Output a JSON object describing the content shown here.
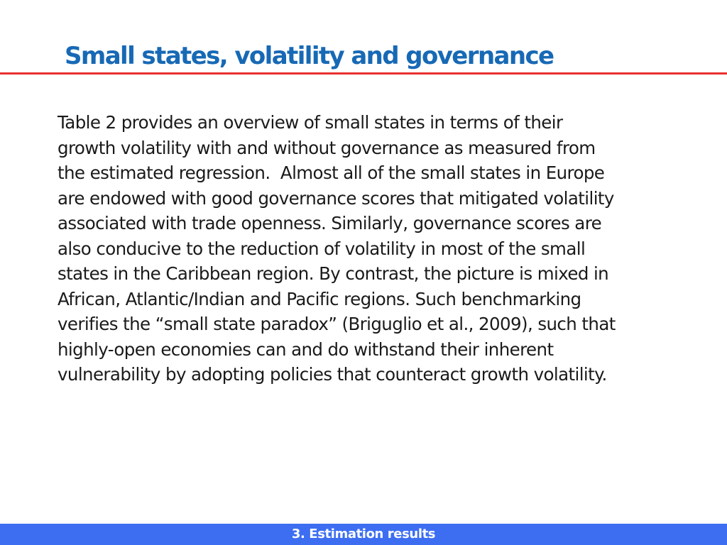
{
  "slide": {
    "title": "Small states, volatility and governance",
    "body_lines": [
      "Table 2 provides an overview of small states in terms of their",
      "growth volatility with and without governance as measured from",
      "the estimated regression.  Almost all of the small states in Europe",
      "are endowed with good governance scores that mitigated volatility",
      "associated with trade openness. Similarly, governance scores are",
      "also conducive to the reduction of volatility in most of the small",
      "states in the Caribbean region. By contrast, the picture is mixed in",
      "African, Atlantic/Indian and Pacific regions. Such benchmarking",
      "verifies the “small state paradox” (Briguglio et al., 2009), such that",
      "highly-open economies can and do withstand their inherent",
      "vulnerability by adopting policies that counteract growth volatility."
    ],
    "footer": "3. Estimation results"
  },
  "colors": {
    "title": "#1769b5",
    "rule": "#e8302f",
    "footer_bar": "#3d6ef2",
    "footer_text": "#ffffff",
    "body_text": "#1a1a1a"
  }
}
